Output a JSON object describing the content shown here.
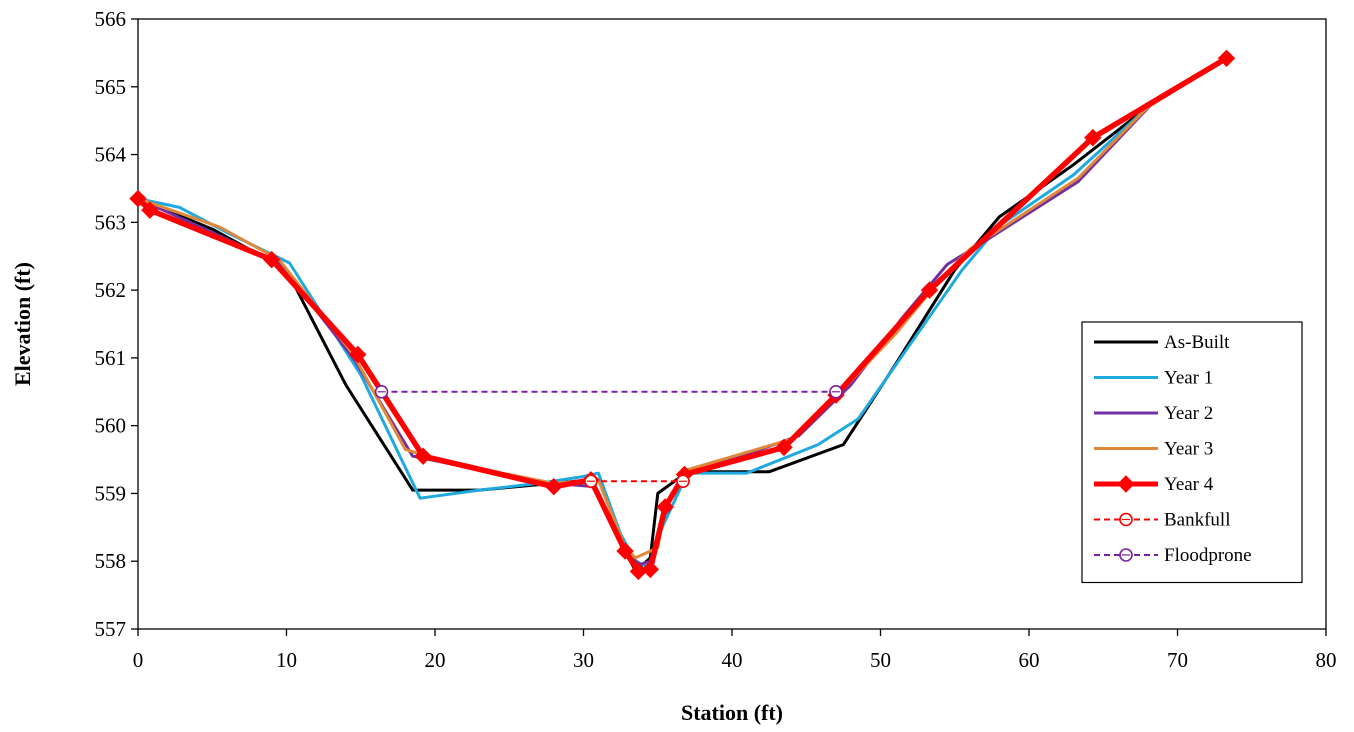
{
  "chart_data": {
    "type": "line",
    "title": "",
    "xlabel": "Station (ft)",
    "ylabel": "Elevation (ft)",
    "xlim": [
      0,
      80
    ],
    "ylim": [
      557,
      566
    ],
    "x_ticks": [
      0,
      10,
      20,
      30,
      40,
      50,
      60,
      70,
      80
    ],
    "y_ticks": [
      557,
      558,
      559,
      560,
      561,
      562,
      563,
      564,
      565,
      566
    ],
    "grid": false,
    "legend_position": "bottom-right",
    "series": [
      {
        "name": "As-Built",
        "color": "#000000",
        "style": "solid",
        "width": 3,
        "marker": "none",
        "points": [
          [
            0,
            563.35
          ],
          [
            5,
            562.9
          ],
          [
            10,
            562.3
          ],
          [
            14,
            560.6
          ],
          [
            18.5,
            559.05
          ],
          [
            23,
            559.05
          ],
          [
            28,
            559.15
          ],
          [
            30.5,
            559.2
          ],
          [
            32.5,
            558.3
          ],
          [
            33.5,
            557.85
          ],
          [
            34.5,
            558.05
          ],
          [
            35,
            559.0
          ],
          [
            37,
            559.32
          ],
          [
            42.5,
            559.32
          ],
          [
            47.5,
            559.72
          ],
          [
            51,
            560.9
          ],
          [
            55,
            562.3
          ],
          [
            58,
            563.08
          ],
          [
            63,
            563.85
          ],
          [
            68,
            564.7
          ],
          [
            73.3,
            565.42
          ]
        ]
      },
      {
        "name": "Year 1",
        "color": "#1ea9e1",
        "style": "solid",
        "width": 3,
        "marker": "none",
        "points": [
          [
            0,
            563.35
          ],
          [
            2.8,
            563.22
          ],
          [
            6,
            562.85
          ],
          [
            10.2,
            562.4
          ],
          [
            15,
            560.75
          ],
          [
            19,
            558.93
          ],
          [
            23,
            559.05
          ],
          [
            27,
            559.15
          ],
          [
            30,
            559.25
          ],
          [
            31,
            559.3
          ],
          [
            32.5,
            558.4
          ],
          [
            33.5,
            558.0
          ],
          [
            34.5,
            557.9
          ],
          [
            35.3,
            558.5
          ],
          [
            37,
            559.3
          ],
          [
            41,
            559.3
          ],
          [
            45.8,
            559.72
          ],
          [
            48.5,
            560.1
          ],
          [
            52,
            561.2
          ],
          [
            55.5,
            562.3
          ],
          [
            58,
            562.95
          ],
          [
            63,
            563.7
          ],
          [
            68.5,
            564.8
          ],
          [
            73.3,
            565.42
          ]
        ]
      },
      {
        "name": "Year 2",
        "color": "#7030a0",
        "style": "solid",
        "width": 3,
        "marker": "none",
        "points": [
          [
            0,
            563.35
          ],
          [
            5,
            562.85
          ],
          [
            9.5,
            562.4
          ],
          [
            14.5,
            561.0
          ],
          [
            18.5,
            559.55
          ],
          [
            23,
            559.35
          ],
          [
            28,
            559.15
          ],
          [
            30.8,
            559.1
          ],
          [
            32.8,
            558.15
          ],
          [
            33.8,
            557.95
          ],
          [
            34.5,
            558.0
          ],
          [
            35.5,
            558.8
          ],
          [
            37,
            559.3
          ],
          [
            40,
            559.5
          ],
          [
            44.5,
            559.85
          ],
          [
            48,
            560.6
          ],
          [
            51.5,
            561.6
          ],
          [
            54.5,
            562.38
          ],
          [
            56.5,
            562.65
          ],
          [
            63.3,
            563.6
          ],
          [
            68.5,
            564.8
          ],
          [
            73.3,
            565.42
          ]
        ]
      },
      {
        "name": "Year 3",
        "color": "#e0883a",
        "style": "solid",
        "width": 3,
        "marker": "none",
        "points": [
          [
            0,
            563.35
          ],
          [
            5.5,
            562.93
          ],
          [
            9.5,
            562.45
          ],
          [
            14.5,
            561.05
          ],
          [
            18,
            559.65
          ],
          [
            21,
            559.45
          ],
          [
            28,
            559.15
          ],
          [
            31,
            559.2
          ],
          [
            32.8,
            558.2
          ],
          [
            33.5,
            558.05
          ],
          [
            35,
            558.2
          ],
          [
            35.5,
            558.8
          ],
          [
            37,
            559.35
          ],
          [
            44,
            559.8
          ],
          [
            47.3,
            560.5
          ],
          [
            51,
            561.35
          ],
          [
            54,
            562.15
          ],
          [
            56,
            562.6
          ],
          [
            63.3,
            563.65
          ],
          [
            68,
            564.7
          ],
          [
            73.3,
            565.42
          ]
        ]
      },
      {
        "name": "Year 4",
        "color": "#ff0000",
        "style": "solid",
        "width": 5.5,
        "marker": "diamond",
        "points": [
          [
            0,
            563.35
          ],
          [
            0.8,
            563.18
          ],
          [
            9,
            562.45
          ],
          [
            14.8,
            561.05
          ],
          [
            19.2,
            559.55
          ],
          [
            28,
            559.1
          ],
          [
            30.5,
            559.2
          ],
          [
            32.8,
            558.15
          ],
          [
            33.7,
            557.85
          ],
          [
            34.5,
            557.88
          ],
          [
            35.5,
            558.8
          ],
          [
            36.8,
            559.28
          ],
          [
            43.5,
            559.68
          ],
          [
            47,
            560.45
          ],
          [
            53.3,
            562.0
          ],
          [
            64.3,
            564.25
          ],
          [
            73.3,
            565.42
          ]
        ]
      },
      {
        "name": "Bankfull",
        "color": "#ff0000",
        "style": "dashed",
        "width": 2,
        "marker": "circle",
        "points": [
          [
            30.5,
            559.18
          ],
          [
            36.7,
            559.18
          ]
        ]
      },
      {
        "name": "Floodprone",
        "color": "#7b1fa2",
        "style": "dashed",
        "width": 2,
        "marker": "circle",
        "points": [
          [
            16.4,
            560.5
          ],
          [
            47.0,
            560.5
          ]
        ]
      }
    ]
  }
}
